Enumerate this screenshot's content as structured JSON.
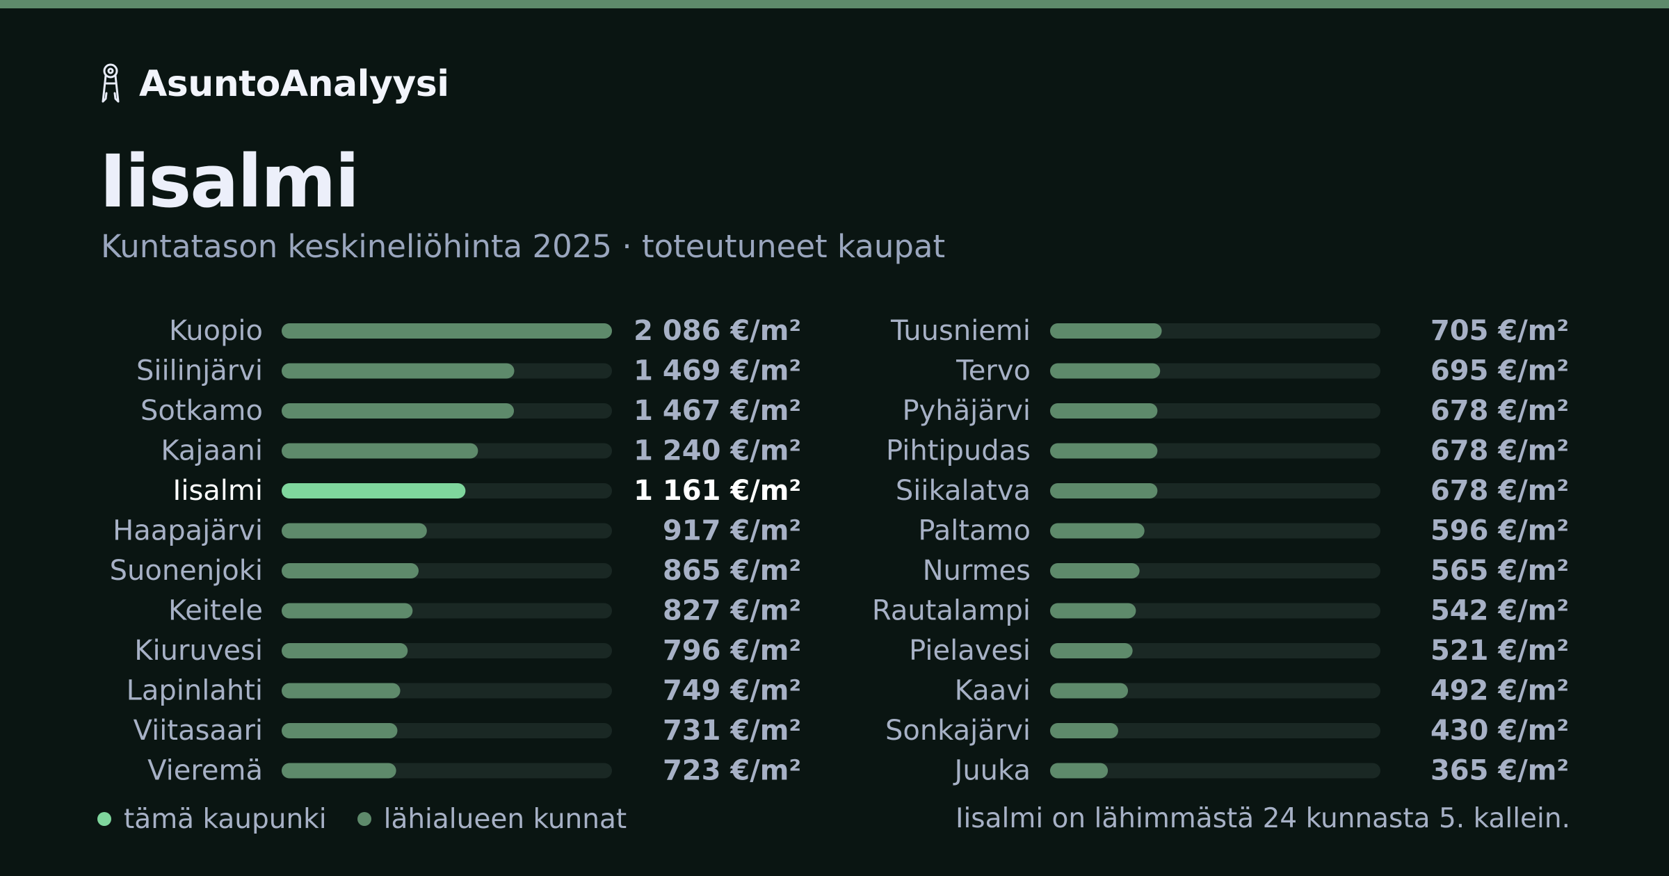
{
  "brand": {
    "name": "AsuntoAnalyysi",
    "icon": "key-icon"
  },
  "header": {
    "city": "Iisalmi",
    "subtitle": "Kuntatason keskineliöhinta 2025 · toteutuneet kaupat"
  },
  "colors": {
    "background": "#0a1512",
    "accent_bar": "#5e8a6b",
    "bar": "#5e8a6b",
    "highlight_bar": "#7fd69d",
    "track": "#1a2824",
    "text_muted": "#a7b1c6",
    "text_highlight": "#ffffff"
  },
  "chart_data": {
    "type": "bar",
    "orientation": "horizontal",
    "unit": "€/m²",
    "xlim": [
      0,
      2086
    ],
    "highlight": "Iisalmi",
    "columns": [
      {
        "categories": [
          "Kuopio",
          "Siilinjärvi",
          "Sotkamo",
          "Kajaani",
          "Iisalmi",
          "Haapajärvi",
          "Suonenjoki",
          "Keitele",
          "Kiuruvesi",
          "Lapinlahti",
          "Viitasaari",
          "Vieremä"
        ],
        "values": [
          2086,
          1469,
          1467,
          1240,
          1161,
          917,
          865,
          827,
          796,
          749,
          731,
          723
        ],
        "labels": [
          "2 086 €/m²",
          "1 469 €/m²",
          "1 467 €/m²",
          "1 240 €/m²",
          "1 161 €/m²",
          "917 €/m²",
          "865 €/m²",
          "827 €/m²",
          "796 €/m²",
          "749 €/m²",
          "731 €/m²",
          "723 €/m²"
        ]
      },
      {
        "categories": [
          "Tuusniemi",
          "Tervo",
          "Pyhäjärvi",
          "Pihtipudas",
          "Siikalatva",
          "Paltamo",
          "Nurmes",
          "Rautalampi",
          "Pielavesi",
          "Kaavi",
          "Sonkajärvi",
          "Juuka"
        ],
        "values": [
          705,
          695,
          678,
          678,
          678,
          596,
          565,
          542,
          521,
          492,
          430,
          365
        ],
        "labels": [
          "705 €/m²",
          "695 €/m²",
          "678 €/m²",
          "678 €/m²",
          "678 €/m²",
          "596 €/m²",
          "565 €/m²",
          "542 €/m²",
          "521 €/m²",
          "492 €/m²",
          "430 €/m²",
          "365 €/m²"
        ]
      }
    ]
  },
  "legend": {
    "items": [
      {
        "label": "tämä kaupunki",
        "color": "#7fd69d"
      },
      {
        "label": "lähialueen kunnat",
        "color": "#5e8a6b"
      }
    ]
  },
  "footer": {
    "note": "Iisalmi on lähimmästä 24 kunnasta 5. kallein."
  }
}
